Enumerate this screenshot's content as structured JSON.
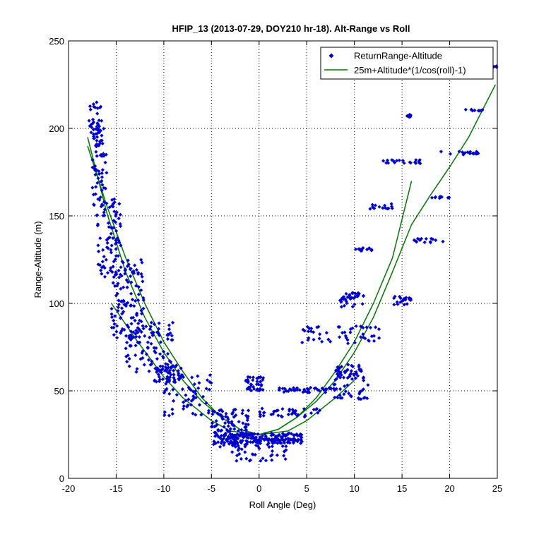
{
  "chart_data": {
    "type": "scatter",
    "title": "HFIP_13 (2013-07-29, DOY210 hr-18).  Alt-Range vs Roll",
    "xlabel": "Roll Angle (Deg)",
    "ylabel": "Range-Altitude (m)",
    "xlim": [
      -20,
      25
    ],
    "ylim": [
      0,
      250
    ],
    "xticks": [
      -20,
      -15,
      -10,
      -5,
      0,
      5,
      10,
      15,
      20,
      25
    ],
    "yticks": [
      0,
      50,
      100,
      150,
      200,
      250
    ],
    "grid": true,
    "legend_position": "top-right",
    "series": [
      {
        "name": "ReturnRange-Altitude",
        "kind": "scatter",
        "color": "#0000cc",
        "clusters": [
          {
            "x": [
              -18,
              -16.5
            ],
            "y": [
              195,
              215
            ],
            "n": 35
          },
          {
            "x": [
              -17.5,
              -16
            ],
            "y": [
              150,
              200
            ],
            "n": 60
          },
          {
            "x": [
              -17,
              -14.5
            ],
            "y": [
              115,
              160
            ],
            "n": 80
          },
          {
            "x": [
              -15.5,
              -12
            ],
            "y": [
              80,
              125
            ],
            "n": 120
          },
          {
            "x": [
              -14,
              -9
            ],
            "y": [
              60,
              90
            ],
            "n": 90
          },
          {
            "x": [
              -11,
              -8
            ],
            "y": [
              55,
              65
            ],
            "n": 50
          },
          {
            "x": [
              -10,
              -5
            ],
            "y": [
              35,
              60
            ],
            "n": 60
          },
          {
            "x": [
              -5,
              -1
            ],
            "y": [
              18,
              40
            ],
            "n": 110
          },
          {
            "x": [
              -4,
              4.5
            ],
            "y": [
              20,
              26
            ],
            "n": 180
          },
          {
            "x": [
              -1.5,
              0.5
            ],
            "y": [
              50,
              58
            ],
            "n": 40
          },
          {
            "x": [
              -3,
              3
            ],
            "y": [
              10,
              20
            ],
            "n": 40
          },
          {
            "x": [
              0,
              6.5
            ],
            "y": [
              35,
              40
            ],
            "n": 40
          },
          {
            "x": [
              2,
              8
            ],
            "y": [
              49,
              52
            ],
            "n": 40
          },
          {
            "x": [
              8,
              11
            ],
            "y": [
              55,
              65
            ],
            "n": 50
          },
          {
            "x": [
              7.5,
              11.5
            ],
            "y": [
              45,
              55
            ],
            "n": 30
          },
          {
            "x": [
              8.5,
              11
            ],
            "y": [
              98,
              106
            ],
            "n": 40
          },
          {
            "x": [
              4.5,
              13
            ],
            "y": [
              77,
              87
            ],
            "n": 50
          },
          {
            "x": [
              10,
              12
            ],
            "y": [
              130,
              132
            ],
            "n": 12
          },
          {
            "x": [
              11.5,
              14
            ],
            "y": [
              154,
              157
            ],
            "n": 15
          },
          {
            "x": [
              14,
              16
            ],
            "y": [
              99,
              104
            ],
            "n": 20
          },
          {
            "x": [
              13,
              17
            ],
            "y": [
              180,
              182
            ],
            "n": 20
          },
          {
            "x": [
              15.5,
              16
            ],
            "y": [
              206,
              208
            ],
            "n": 6
          },
          {
            "x": [
              16,
              20
            ],
            "y": [
              134,
              137
            ],
            "n": 15
          },
          {
            "x": [
              18,
              20
            ],
            "y": [
              160,
              161
            ],
            "n": 10
          },
          {
            "x": [
              19,
              23
            ],
            "y": [
              185,
              187
            ],
            "n": 20
          },
          {
            "x": [
              21.5,
              23.5
            ],
            "y": [
              210,
              211
            ],
            "n": 10
          },
          {
            "x": [
              24.5,
              25
            ],
            "y": [
              235,
              236
            ],
            "n": 4
          }
        ]
      },
      {
        "name": "25m+Altitude*(1/cos(roll)-1)",
        "kind": "line",
        "color": "#007700",
        "curves": [
          {
            "x": [
              -18,
              -16,
              -14,
              -12,
              -10,
              -8,
              -6,
              -4,
              -2,
              0,
              2,
              4,
              6,
              8,
              10,
              12,
              14,
              16
            ],
            "y": [
              190,
              156,
              126,
              100,
              78,
              61,
              46,
              35,
              28,
              25,
              28,
              35,
              46,
              61,
              78,
              100,
              126,
              170
            ]
          },
          {
            "x": [
              -18,
              -16,
              -14,
              -12,
              -10,
              -8,
              -6,
              -4,
              -2,
              0,
              2,
              4,
              6,
              8,
              10,
              12,
              14,
              16,
              18,
              20,
              22,
              24.8
            ],
            "y": [
              195,
              152,
              118,
              92,
              72,
              56,
              44,
              35,
              28,
              25,
              28,
              35,
              44,
              56,
              72,
              92,
              118,
              145,
              162,
              178,
              195,
              225
            ]
          },
          {
            "x": [
              -15.5,
              -13,
              -10,
              -8,
              -5,
              -3,
              0,
              3,
              5,
              8,
              10
            ],
            "y": [
              100,
              80,
              58,
              46,
              33,
              27,
              25,
              27,
              33,
              46,
              56
            ]
          }
        ]
      }
    ]
  }
}
